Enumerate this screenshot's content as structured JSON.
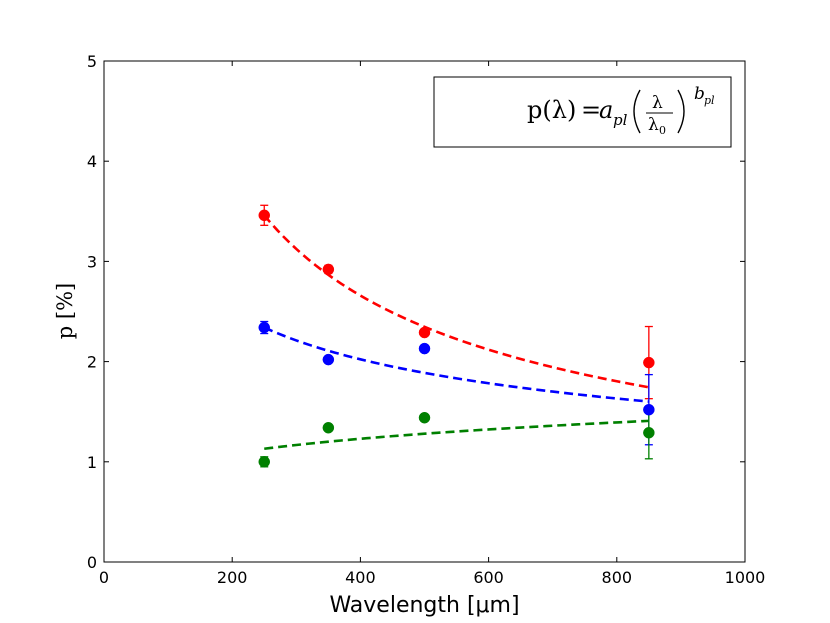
{
  "chart_data": {
    "type": "scatter",
    "title": "",
    "xlabel": "Wavelength [μm]",
    "ylabel": "p [%]",
    "xlim": [
      0,
      1000
    ],
    "ylim": [
      0,
      5
    ],
    "xticks": [
      "0",
      "200",
      "400",
      "600",
      "800",
      "1000"
    ],
    "yticks": [
      "0",
      "1",
      "2",
      "3",
      "4",
      "5"
    ],
    "grid": false,
    "annotation": {
      "lhs": "p(λ)",
      "eq": "=",
      "coef": "a",
      "coef_sub": "pl",
      "num": "λ",
      "den": "λ",
      "den_sub": "0",
      "exp": "b",
      "exp_sub": "pl"
    },
    "series": [
      {
        "color": "#ff0000",
        "x": [
          250,
          350,
          500,
          850
        ],
        "y": [
          3.46,
          2.92,
          2.29,
          1.99
        ],
        "yerr": [
          0.1,
          0.04,
          0.03,
          0.36
        ],
        "fit": {
          "a": 3.46,
          "b": -0.56,
          "x0": 250,
          "x1": 850
        }
      },
      {
        "color": "#0000ff",
        "x": [
          250,
          350,
          500,
          850
        ],
        "y": [
          2.34,
          2.02,
          2.13,
          1.52
        ],
        "yerr": [
          0.06,
          0.03,
          0.03,
          0.35
        ],
        "fit": {
          "a": 2.34,
          "b": -0.31,
          "x0": 250,
          "x1": 850
        }
      },
      {
        "color": "#008000",
        "x": [
          250,
          350,
          500,
          850
        ],
        "y": [
          1.0,
          1.34,
          1.44,
          1.29
        ],
        "yerr": [
          0.05,
          0.03,
          0.03,
          0.26
        ],
        "fit": {
          "a": 1.13,
          "b": 0.18,
          "x0": 250,
          "x1": 850
        }
      }
    ]
  }
}
